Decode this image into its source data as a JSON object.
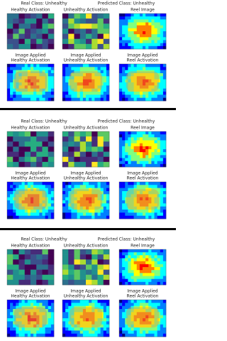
{
  "figures": [
    {
      "real_class": "Real Class: Unhealthy",
      "predicted_class": "Predicted Class: Unhealthy",
      "panels": [
        [
          "Healthy Activation"
        ],
        [
          "Unhealthy Activation"
        ],
        [
          "Reel Image"
        ],
        [
          "Image Applied",
          "Healthy Activation"
        ],
        [
          "Image Applied",
          "Unhealthy Activation"
        ],
        [
          "Image Applied",
          "Reel Activation"
        ]
      ]
    },
    {
      "real_class": "Real Class: Unhealthy",
      "predicted_class": "Predicted Class: Unhealthy",
      "panels": [
        [
          "Healthy Activation"
        ],
        [
          "Unhealthy Activation"
        ],
        [
          "Reel Image"
        ],
        [
          "Image Applied",
          "Healthy Activation"
        ],
        [
          "Image Applied",
          "Unhealthy Activation"
        ],
        [
          "Image Applied",
          "Reel Activation"
        ]
      ]
    },
    {
      "real_class": "Real Class: Unhealthy",
      "predicted_class": "Predicted Class: Unhealthy",
      "panels": [
        [
          "Healthy Activation"
        ],
        [
          "Unhealthy Activation"
        ],
        [
          "Reel Image"
        ],
        [
          "Image Applied",
          "Healthy Activation"
        ],
        [
          "Image Applied",
          "Unhealthy Activation"
        ],
        [
          "Image Applied",
          "Reel Activation"
        ]
      ]
    }
  ]
}
